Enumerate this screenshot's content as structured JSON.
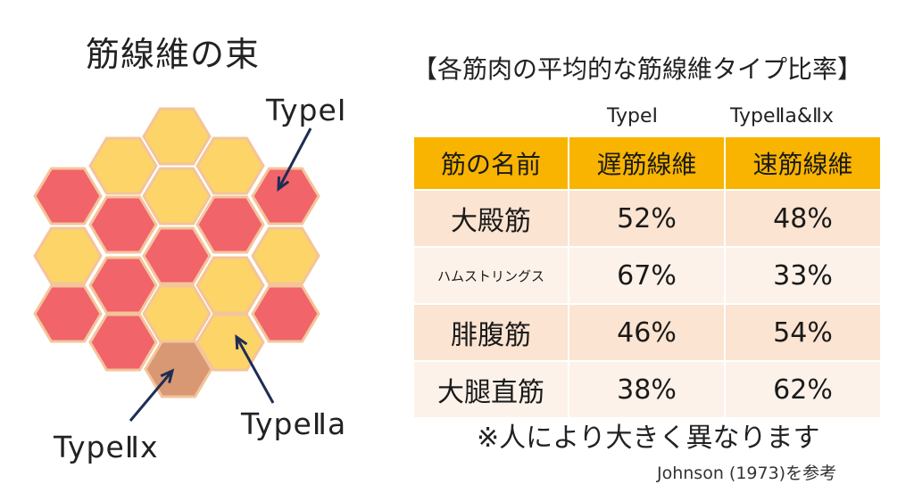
{
  "diagram": {
    "title": "筋線維の束",
    "labels": {
      "type1": "TypeⅠ",
      "type2a": "TypeⅡa",
      "type2x": "TypeⅡx"
    },
    "colors": {
      "type1": "#f0646a",
      "type2a": "#fdd468",
      "type2x": "#d99874",
      "hex_border": "#f4c49a",
      "arrow": "#1f2d55"
    },
    "hexagons": [
      {
        "type": "type2a"
      },
      {
        "type": "type2a"
      },
      {
        "type": "type2a"
      },
      {
        "type": "type1"
      },
      {
        "type": "type2a"
      },
      {
        "type": "type1"
      },
      {
        "type": "type1"
      },
      {
        "type": "type1"
      },
      {
        "type": "type2a"
      },
      {
        "type": "type1"
      },
      {
        "type": "type2a"
      },
      {
        "type": "type1"
      },
      {
        "type": "type2a"
      },
      {
        "type": "type1"
      },
      {
        "type": "type2a"
      },
      {
        "type": "type1"
      },
      {
        "type": "type1"
      },
      {
        "type": "type2a"
      },
      {
        "type": "type2x"
      }
    ]
  },
  "table": {
    "title": "【各筋肉の平均的な筋線維タイプ比率】",
    "captions": {
      "slow": "TypeⅠ",
      "fast": "TypeⅡa&Ⅱx"
    },
    "headers": {
      "name": "筋の名前",
      "slow": "遅筋線維",
      "fast": "速筋線維"
    },
    "rows": [
      {
        "name": "大殿筋",
        "slow": "52%",
        "fast": "48%"
      },
      {
        "name": "ハムストリングス",
        "slow": "67%",
        "fast": "33%"
      },
      {
        "name": "腓腹筋",
        "slow": "46%",
        "fast": "54%"
      },
      {
        "name": "大腿直筋",
        "slow": "38%",
        "fast": "62%"
      }
    ],
    "header_color": "#f8b400"
  },
  "note": "※人により大きく異なります",
  "citation": "Johnson (1973)を参考"
}
